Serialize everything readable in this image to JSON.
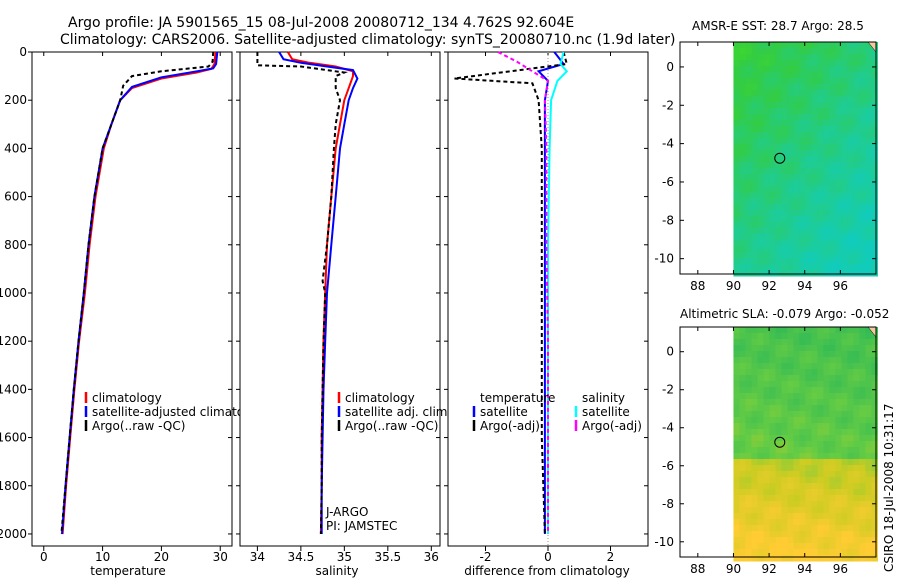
{
  "header": {
    "line1": "Argo profile: JA 5901565_15 08-Jul-2008 20080712_134 4.762S 92.604E",
    "line2": "Climatology: CARS2006. Satellite-adjusted climatology: synTS_20080710.nc (1.9d later)"
  },
  "side_stamp": "CSIRO 18-Jul-2008 10:31:17",
  "colors": {
    "climatology": "#ff0000",
    "satellite": "#0000ff",
    "argo": "#000000",
    "sat_salinity": "#00ffff",
    "argo_salinity": "#ff00ff"
  },
  "chart_data": [
    {
      "id": "temperature",
      "type": "line",
      "xlabel": "temperature",
      "xlim": [
        -2,
        32
      ],
      "ylim": [
        2050,
        0
      ],
      "xticks": [
        "0",
        "10",
        "20",
        "30"
      ],
      "xtick_values": [
        0,
        10,
        20,
        30
      ],
      "yticks": [
        "0",
        "200",
        "400",
        "600",
        "800",
        "1000",
        "1200",
        "1400",
        "1600",
        "1800",
        "2000"
      ],
      "ytick_values": [
        0,
        200,
        400,
        600,
        800,
        1000,
        1200,
        1400,
        1600,
        1800,
        2000
      ],
      "legend": [
        "climatology",
        "satellite-adjusted climatology",
        "Argo(..raw -QC)"
      ],
      "series": [
        {
          "name": "climatology",
          "color": "#ff0000",
          "dash": "",
          "points": [
            [
              29.2,
              0
            ],
            [
              29.0,
              50
            ],
            [
              28.5,
              70
            ],
            [
              26,
              85
            ],
            [
              20,
              110
            ],
            [
              15,
              150
            ],
            [
              13,
              200
            ],
            [
              11.5,
              300
            ],
            [
              10.2,
              400
            ],
            [
              8.8,
              600
            ],
            [
              7.8,
              800
            ],
            [
              7,
              1000
            ],
            [
              6,
              1200
            ],
            [
              5.2,
              1400
            ],
            [
              4.5,
              1600
            ],
            [
              3.8,
              1800
            ],
            [
              3.2,
              2000
            ]
          ]
        },
        {
          "name": "satellite-adjusted climatology",
          "color": "#0000ff",
          "dash": "",
          "points": [
            [
              29.5,
              0
            ],
            [
              29.3,
              50
            ],
            [
              28.8,
              68
            ],
            [
              26,
              80
            ],
            [
              20,
              105
            ],
            [
              15,
              145
            ],
            [
              13,
              200
            ],
            [
              11.5,
              300
            ],
            [
              10,
              400
            ],
            [
              8.6,
              600
            ],
            [
              7.6,
              800
            ],
            [
              6.8,
              1000
            ],
            [
              5.9,
              1200
            ],
            [
              5.1,
              1400
            ],
            [
              4.4,
              1600
            ],
            [
              3.7,
              1800
            ],
            [
              3.1,
              2000
            ]
          ]
        },
        {
          "name": "Argo(..raw -QC)",
          "color": "#000000",
          "dash": "4,3",
          "points": [
            [
              28.8,
              0
            ],
            [
              28.7,
              40
            ],
            [
              28.0,
              60
            ],
            [
              20,
              80
            ],
            [
              15,
              100
            ],
            [
              13.5,
              140
            ],
            [
              13,
              200
            ],
            [
              11.5,
              300
            ],
            [
              10,
              400
            ],
            [
              8.6,
              600
            ],
            [
              7.6,
              800
            ],
            [
              6.8,
              1000
            ],
            [
              5.9,
              1200
            ],
            [
              5.1,
              1400
            ],
            [
              4.4,
              1600
            ],
            [
              3.7,
              1800
            ],
            [
              3.0,
              2000
            ]
          ]
        }
      ]
    },
    {
      "id": "salinity",
      "type": "line",
      "xlabel": "salinity",
      "xlim": [
        33.8,
        36.1
      ],
      "ylim": [
        2050,
        0
      ],
      "xticks": [
        "34",
        "34.5",
        "35",
        "35.5",
        "36"
      ],
      "xtick_values": [
        34,
        34.5,
        35,
        35.5,
        36
      ],
      "legend": [
        "climatology",
        "satellite adj. clim.",
        "Argo(..raw -QC)"
      ],
      "annotations": [
        "J-ARGO",
        "PI: JAMSTEC"
      ],
      "series": [
        {
          "name": "climatology",
          "color": "#ff0000",
          "dash": "",
          "points": [
            [
              34.35,
              0
            ],
            [
              34.4,
              30
            ],
            [
              34.6,
              45
            ],
            [
              34.9,
              60
            ],
            [
              35.1,
              80
            ],
            [
              35.1,
              100
            ],
            [
              35.05,
              150
            ],
            [
              35.0,
              200
            ],
            [
              34.95,
              300
            ],
            [
              34.9,
              400
            ],
            [
              34.85,
              600
            ],
            [
              34.8,
              800
            ],
            [
              34.78,
              1000
            ],
            [
              34.76,
              1200
            ],
            [
              34.75,
              1400
            ],
            [
              34.74,
              1600
            ],
            [
              34.74,
              1800
            ],
            [
              34.73,
              2000
            ]
          ]
        },
        {
          "name": "satellite adj. clim.",
          "color": "#0000ff",
          "dash": "",
          "points": [
            [
              34.25,
              0
            ],
            [
              34.3,
              30
            ],
            [
              34.5,
              45
            ],
            [
              34.8,
              60
            ],
            [
              35.1,
              75
            ],
            [
              35.15,
              110
            ],
            [
              35.1,
              150
            ],
            [
              35.05,
              200
            ],
            [
              35.0,
              300
            ],
            [
              34.95,
              400
            ],
            [
              34.9,
              600
            ],
            [
              34.85,
              800
            ],
            [
              34.8,
              1000
            ],
            [
              34.78,
              1200
            ],
            [
              34.76,
              1400
            ],
            [
              34.75,
              1600
            ],
            [
              34.74,
              1800
            ],
            [
              34.74,
              2000
            ]
          ]
        },
        {
          "name": "Argo(..raw -QC)",
          "color": "#000000",
          "dash": "4,3",
          "points": [
            [
              34.0,
              0
            ],
            [
              34.0,
              55
            ],
            [
              34.5,
              60
            ],
            [
              34.7,
              70
            ],
            [
              35.0,
              85
            ],
            [
              34.9,
              100
            ],
            [
              34.9,
              150
            ],
            [
              34.95,
              200
            ],
            [
              34.9,
              300
            ],
            [
              34.88,
              400
            ],
            [
              34.85,
              600
            ],
            [
              34.8,
              800
            ],
            [
              34.75,
              950
            ],
            [
              34.78,
              1000
            ],
            [
              34.76,
              1200
            ],
            [
              34.75,
              1400
            ],
            [
              34.74,
              1600
            ],
            [
              34.74,
              1800
            ],
            [
              34.73,
              2000
            ]
          ]
        }
      ]
    },
    {
      "id": "difference",
      "type": "line",
      "xlabel": "difference from climatology",
      "xlim": [
        -3.2,
        3.2
      ],
      "ylim": [
        2050,
        0
      ],
      "xticks": [
        "-2",
        "0",
        "2"
      ],
      "xtick_values": [
        -2,
        0,
        2
      ],
      "legend_groups": {
        "temperature": {
          "title": "temperature",
          "items": [
            "satellite",
            "Argo(-adj)"
          ]
        },
        "salinity": {
          "title": "salinity",
          "items": [
            "satellite",
            "Argo(-adj)"
          ]
        }
      },
      "series": [
        {
          "name": "temperature satellite",
          "color": "#0000ff",
          "dash": "",
          "points": [
            [
              0.2,
              0
            ],
            [
              0.5,
              50
            ],
            [
              -0.3,
              80
            ],
            [
              0,
              120
            ],
            [
              -0.1,
              200
            ],
            [
              -0.1,
              400
            ],
            [
              -0.1,
              800
            ],
            [
              -0.1,
              1200
            ],
            [
              -0.1,
              1600
            ],
            [
              -0.1,
              2000
            ]
          ]
        },
        {
          "name": "temperature Argo(-adj)",
          "color": "#000000",
          "dash": "4,3",
          "points": [
            [
              0.5,
              0
            ],
            [
              0.6,
              50
            ],
            [
              -3.0,
              110
            ],
            [
              -0.5,
              130
            ],
            [
              -0.3,
              200
            ],
            [
              -0.2,
              400
            ],
            [
              -0.2,
              800
            ],
            [
              -0.2,
              1200
            ],
            [
              -0.2,
              1600
            ],
            [
              -0.1,
              2000
            ]
          ]
        },
        {
          "name": "salinity satellite",
          "color": "#00ffff",
          "dash": "",
          "points": [
            [
              0.5,
              0
            ],
            [
              0.4,
              50
            ],
            [
              0.6,
              80
            ],
            [
              0.3,
              120
            ],
            [
              0.1,
              200
            ],
            [
              0.05,
              400
            ],
            [
              0.0,
              800
            ],
            [
              0.0,
              1200
            ],
            [
              0.0,
              1600
            ],
            [
              0.0,
              2000
            ]
          ]
        },
        {
          "name": "salinity Argo(-adj)",
          "color": "#ff00ff",
          "dash": "4,3",
          "points": [
            [
              -1.6,
              0
            ],
            [
              -1.0,
              40
            ],
            [
              -0.5,
              80
            ],
            [
              0.0,
              120
            ],
            [
              -0.1,
              200
            ],
            [
              -0.05,
              400
            ],
            [
              -0.05,
              800
            ],
            [
              0.0,
              1200
            ],
            [
              0.0,
              1600
            ],
            [
              0.0,
              2000
            ]
          ]
        }
      ]
    },
    {
      "id": "sst_map",
      "type": "heatmap",
      "title": "AMSR-E SST: 28.7 Argo: 28.5",
      "xlim": [
        87,
        98
      ],
      "ylim": [
        -10.8,
        1.3
      ],
      "data_xlim": [
        90,
        98
      ],
      "xticks": [
        "88",
        "90",
        "92",
        "94",
        "96"
      ],
      "xtick_values": [
        88,
        90,
        92,
        94,
        96
      ],
      "yticks": [
        "0",
        "-2",
        "-4",
        "-6",
        "-8",
        "-10"
      ],
      "ytick_values": [
        0,
        -2,
        -4,
        -6,
        -8,
        -10
      ],
      "float_position": [
        92.6,
        -4.76
      ],
      "colors": [
        "#44dd22",
        "#33cc44",
        "#22cc88",
        "#11ccbb"
      ]
    },
    {
      "id": "sla_map",
      "type": "heatmap",
      "title": "Altimetric SLA: -0.079 Argo: -0.052",
      "xlim": [
        87,
        98
      ],
      "ylim": [
        -10.8,
        1.3
      ],
      "data_xlim": [
        90,
        98
      ],
      "xticks": [
        "88",
        "90",
        "92",
        "94",
        "96"
      ],
      "xtick_values": [
        88,
        90,
        92,
        94,
        96
      ],
      "yticks": [
        "0",
        "-2",
        "-4",
        "-6",
        "-8",
        "-10"
      ],
      "ytick_values": [
        0,
        -2,
        -4,
        -6,
        -8,
        -10
      ],
      "float_position": [
        92.6,
        -4.76
      ],
      "colors": [
        "#33bb55",
        "#66cc44",
        "#cccc22",
        "#ffcc33"
      ]
    }
  ]
}
